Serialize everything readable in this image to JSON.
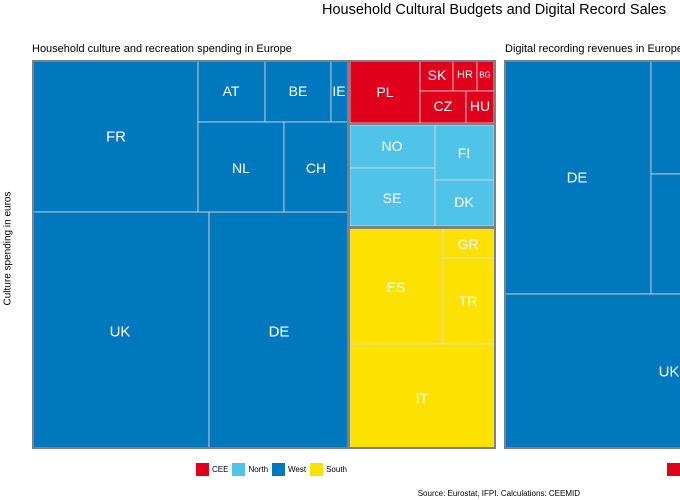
{
  "title": "Household Cultural Budgets and Digital Record Sales",
  "source": "Source: Eurostat, IFPI. Calculations: CEEMID",
  "colors": {
    "CEE": "#e0001b",
    "North": "#4fc3e8",
    "West": "#0078be",
    "South": "#fde100"
  },
  "chart_data": [
    {
      "type": "treemap",
      "title": "Household culture and recreation spending in Europe",
      "ylabel": "Culture spending in euros",
      "legend": [
        {
          "label": "CEE",
          "color": "#e0001b"
        },
        {
          "label": "North",
          "color": "#4fc3e8"
        },
        {
          "label": "West",
          "color": "#0078be"
        },
        {
          "label": "South",
          "color": "#fde100"
        }
      ],
      "groups": [
        {
          "name": "West",
          "items": [
            {
              "label": "FR"
            },
            {
              "label": "UK"
            },
            {
              "label": "DE"
            },
            {
              "label": "AT"
            },
            {
              "label": "BE"
            },
            {
              "label": "IE"
            },
            {
              "label": "NL"
            },
            {
              "label": "CH"
            }
          ]
        },
        {
          "name": "CEE",
          "items": [
            {
              "label": "PL"
            },
            {
              "label": "SK"
            },
            {
              "label": "HR"
            },
            {
              "label": "BG"
            },
            {
              "label": "CZ"
            },
            {
              "label": "HU"
            }
          ]
        },
        {
          "name": "North",
          "items": [
            {
              "label": "NO"
            },
            {
              "label": "FI"
            },
            {
              "label": "SE"
            },
            {
              "label": "DK"
            }
          ]
        },
        {
          "name": "South",
          "items": [
            {
              "label": "GR"
            },
            {
              "label": "ES"
            },
            {
              "label": "TR"
            },
            {
              "label": "IT"
            }
          ]
        }
      ]
    },
    {
      "type": "treemap",
      "title": "Digital recording revenues in Europe",
      "groups": [
        {
          "name": "West",
          "items": [
            {
              "label": "DE"
            },
            {
              "label": "UK"
            }
          ]
        }
      ]
    }
  ]
}
